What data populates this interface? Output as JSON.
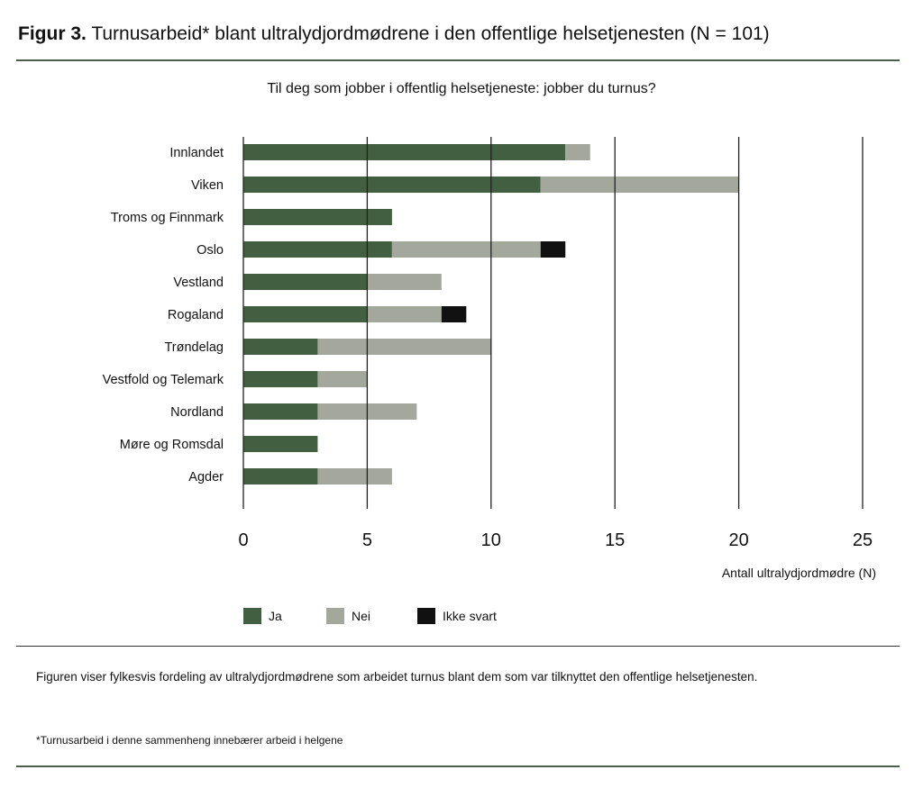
{
  "figure_label": "Figur 3.",
  "figure_title": "Turnusarbeid* blant ultralydjordmødrene i den offentlige helsetjenesten (N = 101)",
  "caption": "Figuren viser fylkesvis fordeling av ultralydjordmødrene som arbeidet turnus blant dem som var tilknyttet den offentlige helsetjenesten.",
  "footnote": "*Turnusarbeid i denne sammenheng innebærer arbeid i helgene",
  "chart_data": {
    "type": "bar",
    "orientation": "horizontal",
    "stacked": true,
    "title": "Til deg som jobber i offentlig helsetjeneste: jobber du turnus?",
    "xlabel": "Antall ultralydjordmødre (N)",
    "ylabel": "",
    "xlim": [
      0,
      25
    ],
    "xticks": [
      "0",
      "5",
      "10",
      "15",
      "20",
      "25"
    ],
    "grid": true,
    "legend_position": "bottom",
    "categories": [
      "Innlandet",
      "Viken",
      "Troms og Finnmark",
      "Oslo",
      "Vestland",
      "Rogaland",
      "Trøndelag",
      "Vestfold og Telemark",
      "Nordland",
      "Møre og Romsdal",
      "Agder"
    ],
    "series": [
      {
        "name": "Ja",
        "color": "#426041",
        "values": [
          13,
          12,
          6,
          6,
          5,
          5,
          3,
          3,
          3,
          3,
          3
        ]
      },
      {
        "name": "Nei",
        "color": "#a4a79b",
        "values": [
          1,
          8,
          0,
          6,
          3,
          3,
          7,
          2,
          4,
          0,
          3
        ]
      },
      {
        "name": "Ikke svart",
        "color": "#111111",
        "values": [
          0,
          0,
          0,
          1,
          0,
          1,
          0,
          0,
          0,
          0,
          0
        ]
      }
    ]
  },
  "colors": {
    "rule": "#4a5e4a"
  }
}
